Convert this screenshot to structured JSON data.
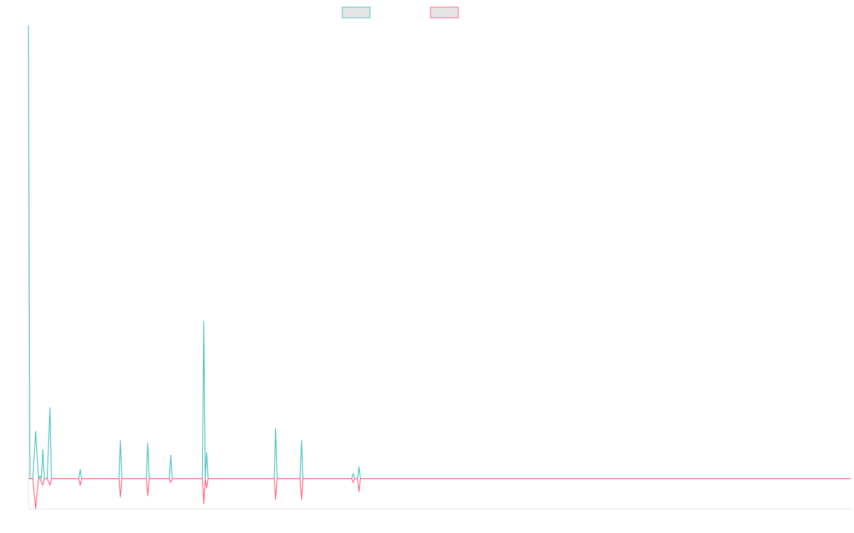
{
  "chart_data": {
    "type": "line",
    "title": "",
    "xlabel": "",
    "ylabel": "",
    "xlim": [
      0,
      572
    ],
    "ylim": [
      -2.3,
      34.5
    ],
    "grid": false,
    "legend_placement": "top-center",
    "colors": {
      "series_a": "#4bc0c0",
      "series_b": "#ff6384",
      "axis": "#e6e6e6"
    },
    "series": [
      {
        "color": "#4bc0c0",
        "points": [
          [
            0,
            34.5
          ],
          [
            1,
            0
          ],
          [
            3,
            0
          ],
          [
            5,
            3.6
          ],
          [
            7,
            0
          ],
          [
            8,
            0.2
          ],
          [
            9,
            0
          ],
          [
            10,
            2.2
          ],
          [
            11,
            0
          ],
          [
            13,
            0
          ],
          [
            15,
            5.4
          ],
          [
            16,
            0
          ],
          [
            35,
            0
          ],
          [
            36,
            0.7
          ],
          [
            37,
            0
          ],
          [
            63,
            0
          ],
          [
            64,
            2.9
          ],
          [
            65,
            0
          ],
          [
            82,
            0
          ],
          [
            83,
            2.7
          ],
          [
            84,
            0
          ],
          [
            98,
            0
          ],
          [
            99,
            1.8
          ],
          [
            100,
            0
          ],
          [
            121,
            0
          ],
          [
            122,
            12.0
          ],
          [
            123,
            0
          ],
          [
            124,
            2.0
          ],
          [
            125,
            0
          ],
          [
            171,
            0
          ],
          [
            172,
            3.8
          ],
          [
            173,
            0
          ],
          [
            189,
            0
          ],
          [
            190,
            2.9
          ],
          [
            191,
            0
          ],
          [
            225,
            0
          ],
          [
            226,
            0.4
          ],
          [
            227,
            0
          ],
          [
            229,
            0
          ],
          [
            230,
            0.9
          ],
          [
            231,
            0
          ],
          [
            572,
            0
          ]
        ]
      },
      {
        "color": "#ff6384",
        "points": [
          [
            0,
            0
          ],
          [
            3,
            0
          ],
          [
            5,
            -2.3
          ],
          [
            7,
            0
          ],
          [
            8,
            0
          ],
          [
            10,
            -0.5
          ],
          [
            11,
            0
          ],
          [
            13,
            0
          ],
          [
            15,
            -0.5
          ],
          [
            16,
            0
          ],
          [
            35,
            0
          ],
          [
            36,
            -0.5
          ],
          [
            37,
            0
          ],
          [
            63,
            0
          ],
          [
            64,
            -1.4
          ],
          [
            65,
            0
          ],
          [
            82,
            0
          ],
          [
            83,
            -1.3
          ],
          [
            84,
            0
          ],
          [
            98,
            0
          ],
          [
            99,
            -0.3
          ],
          [
            100,
            0
          ],
          [
            121,
            0
          ],
          [
            122,
            -1.9
          ],
          [
            123,
            0
          ],
          [
            124,
            -0.7
          ],
          [
            125,
            0
          ],
          [
            171,
            0
          ],
          [
            172,
            -1.6
          ],
          [
            173,
            0
          ],
          [
            189,
            0
          ],
          [
            190,
            -1.6
          ],
          [
            191,
            0
          ],
          [
            225,
            0
          ],
          [
            226,
            -0.3
          ],
          [
            227,
            0
          ],
          [
            229,
            0
          ],
          [
            230,
            -1.0
          ],
          [
            231,
            0
          ],
          [
            572,
            0
          ]
        ]
      }
    ]
  }
}
